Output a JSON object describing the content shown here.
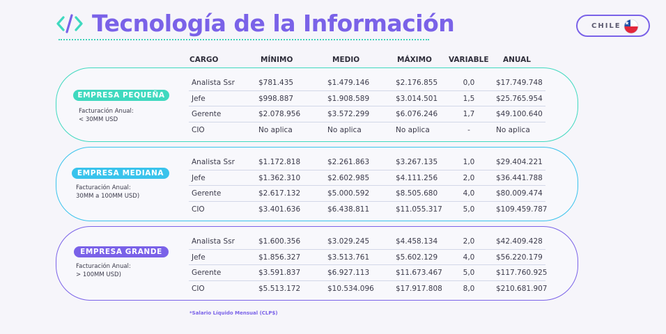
{
  "title": "Tecnología de la Información",
  "country": "CHILE",
  "headers": {
    "cargo": "CARGO",
    "minimo": "MÍNIMO",
    "medio": "MEDIO",
    "maximo": "MÁXIMO",
    "variable": "VARIABLE",
    "anual": "ANUAL"
  },
  "groups": [
    {
      "badge": "EMPRESA PEQUEÑA",
      "desc1": "Facturación Anual:",
      "desc2": "< 30MM USD",
      "rows": [
        {
          "cargo": "Analista Ssr",
          "min": "$781.435",
          "med": "$1.479.146",
          "max": "$2.176.855",
          "var": "0,0",
          "anual": "$17.749.748"
        },
        {
          "cargo": "Jefe",
          "min": "$998.887",
          "med": "$1.908.589",
          "max": "$3.014.501",
          "var": "1,5",
          "anual": "$25.765.954"
        },
        {
          "cargo": "Gerente",
          "min": "$2.078.956",
          "med": "$3.572.299",
          "max": "$6.076.246",
          "var": "1,7",
          "anual": "$49.100.640"
        },
        {
          "cargo": "CIO",
          "min": "No aplica",
          "med": "No aplica",
          "max": "No aplica",
          "var": "-",
          "anual": "No aplica"
        }
      ]
    },
    {
      "badge": "EMPRESA MEDIANA",
      "desc1": "Facturación Anual:",
      "desc2": "30MM a 100MM USD)",
      "rows": [
        {
          "cargo": "Analista Ssr",
          "min": "$1.172.818",
          "med": "$2.261.863",
          "max": "$3.267.135",
          "var": "1,0",
          "anual": "$29.404.221"
        },
        {
          "cargo": "Jefe",
          "min": "$1.362.310",
          "med": "$2.602.985",
          "max": "$4.111.256",
          "var": "2,0",
          "anual": "$36.441.788"
        },
        {
          "cargo": "Gerente",
          "min": "$2.617.132",
          "med": "$5.000.592",
          "max": "$8.505.680",
          "var": "4,0",
          "anual": "$80.009.474"
        },
        {
          "cargo": "CIO",
          "min": "$3.401.636",
          "med": "$6.438.811",
          "max": "$11.055.317",
          "var": "5,0",
          "anual": "$109.459.787"
        }
      ]
    },
    {
      "badge": "EMPRESA GRANDE",
      "desc1": "Facturación Anual:",
      "desc2": "> 100MM USD)",
      "rows": [
        {
          "cargo": "Analista Ssr",
          "min": "$1.600.356",
          "med": "$3.029.245",
          "max": "$4.458.134",
          "var": "2,0",
          "anual": "$42.409.428"
        },
        {
          "cargo": "Jefe",
          "min": "$1.856.327",
          "med": "$3.513.761",
          "max": "$5.602.129",
          "var": "4,0",
          "anual": "$56.220.179"
        },
        {
          "cargo": "Gerente",
          "min": "$3.591.837",
          "med": "$6.927.113",
          "max": "$11.673.467",
          "var": "5,0",
          "anual": "$117.760.925"
        },
        {
          "cargo": "CIO",
          "min": "$5.513.172",
          "med": "$10.534.096",
          "max": "$17.917.808",
          "var": "8,0",
          "anual": "$210.681.907"
        }
      ]
    }
  ],
  "footnote": "*Salario Líquido Mensual (CLP$)",
  "colors": {
    "purple": "#7a62e8",
    "teal": "#3fd9bf",
    "cyan": "#39c3ec"
  },
  "icons": {
    "title": "code-brackets-icon",
    "country": "chile-flag-icon"
  }
}
